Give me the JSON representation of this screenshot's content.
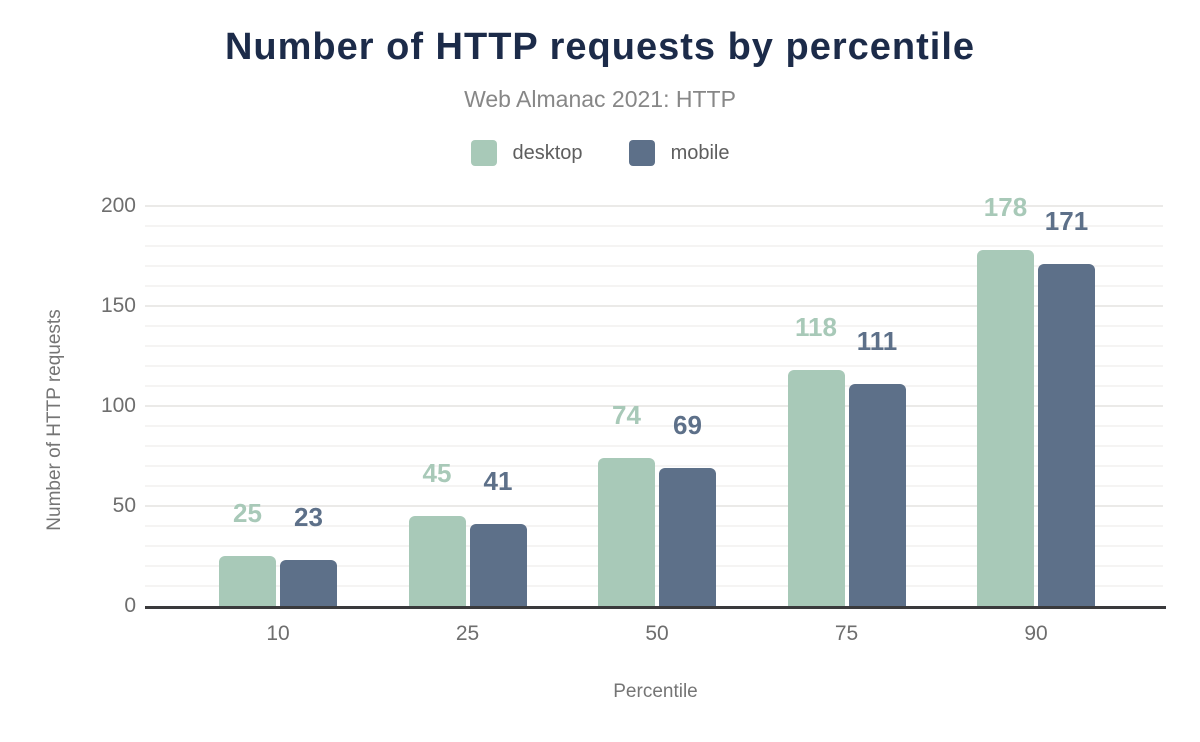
{
  "chart_data": {
    "type": "bar",
    "title": "Number of HTTP requests by percentile",
    "subtitle": "Web Almanac 2021: HTTP",
    "xlabel": "Percentile",
    "ylabel": "Number of HTTP requests",
    "categories": [
      "10",
      "25",
      "50",
      "75",
      "90"
    ],
    "series": [
      {
        "name": "desktop",
        "color": "#a8c9b8",
        "values": [
          25,
          45,
          74,
          118,
          178
        ]
      },
      {
        "name": "mobile",
        "color": "#5d7089",
        "values": [
          23,
          41,
          69,
          111,
          171
        ]
      }
    ],
    "ylim": [
      0,
      200
    ],
    "yticks": [
      0,
      50,
      100,
      150,
      200
    ],
    "minor_grid_step": 10,
    "grid": true,
    "legend_position": "top",
    "value_labels": true
  },
  "colors": {
    "title": "#1c2b49",
    "subtitle": "#878787",
    "axis_text": "#6e6e6e",
    "axis_title_text": "#757575",
    "axis_line": "#3a3a3c"
  }
}
